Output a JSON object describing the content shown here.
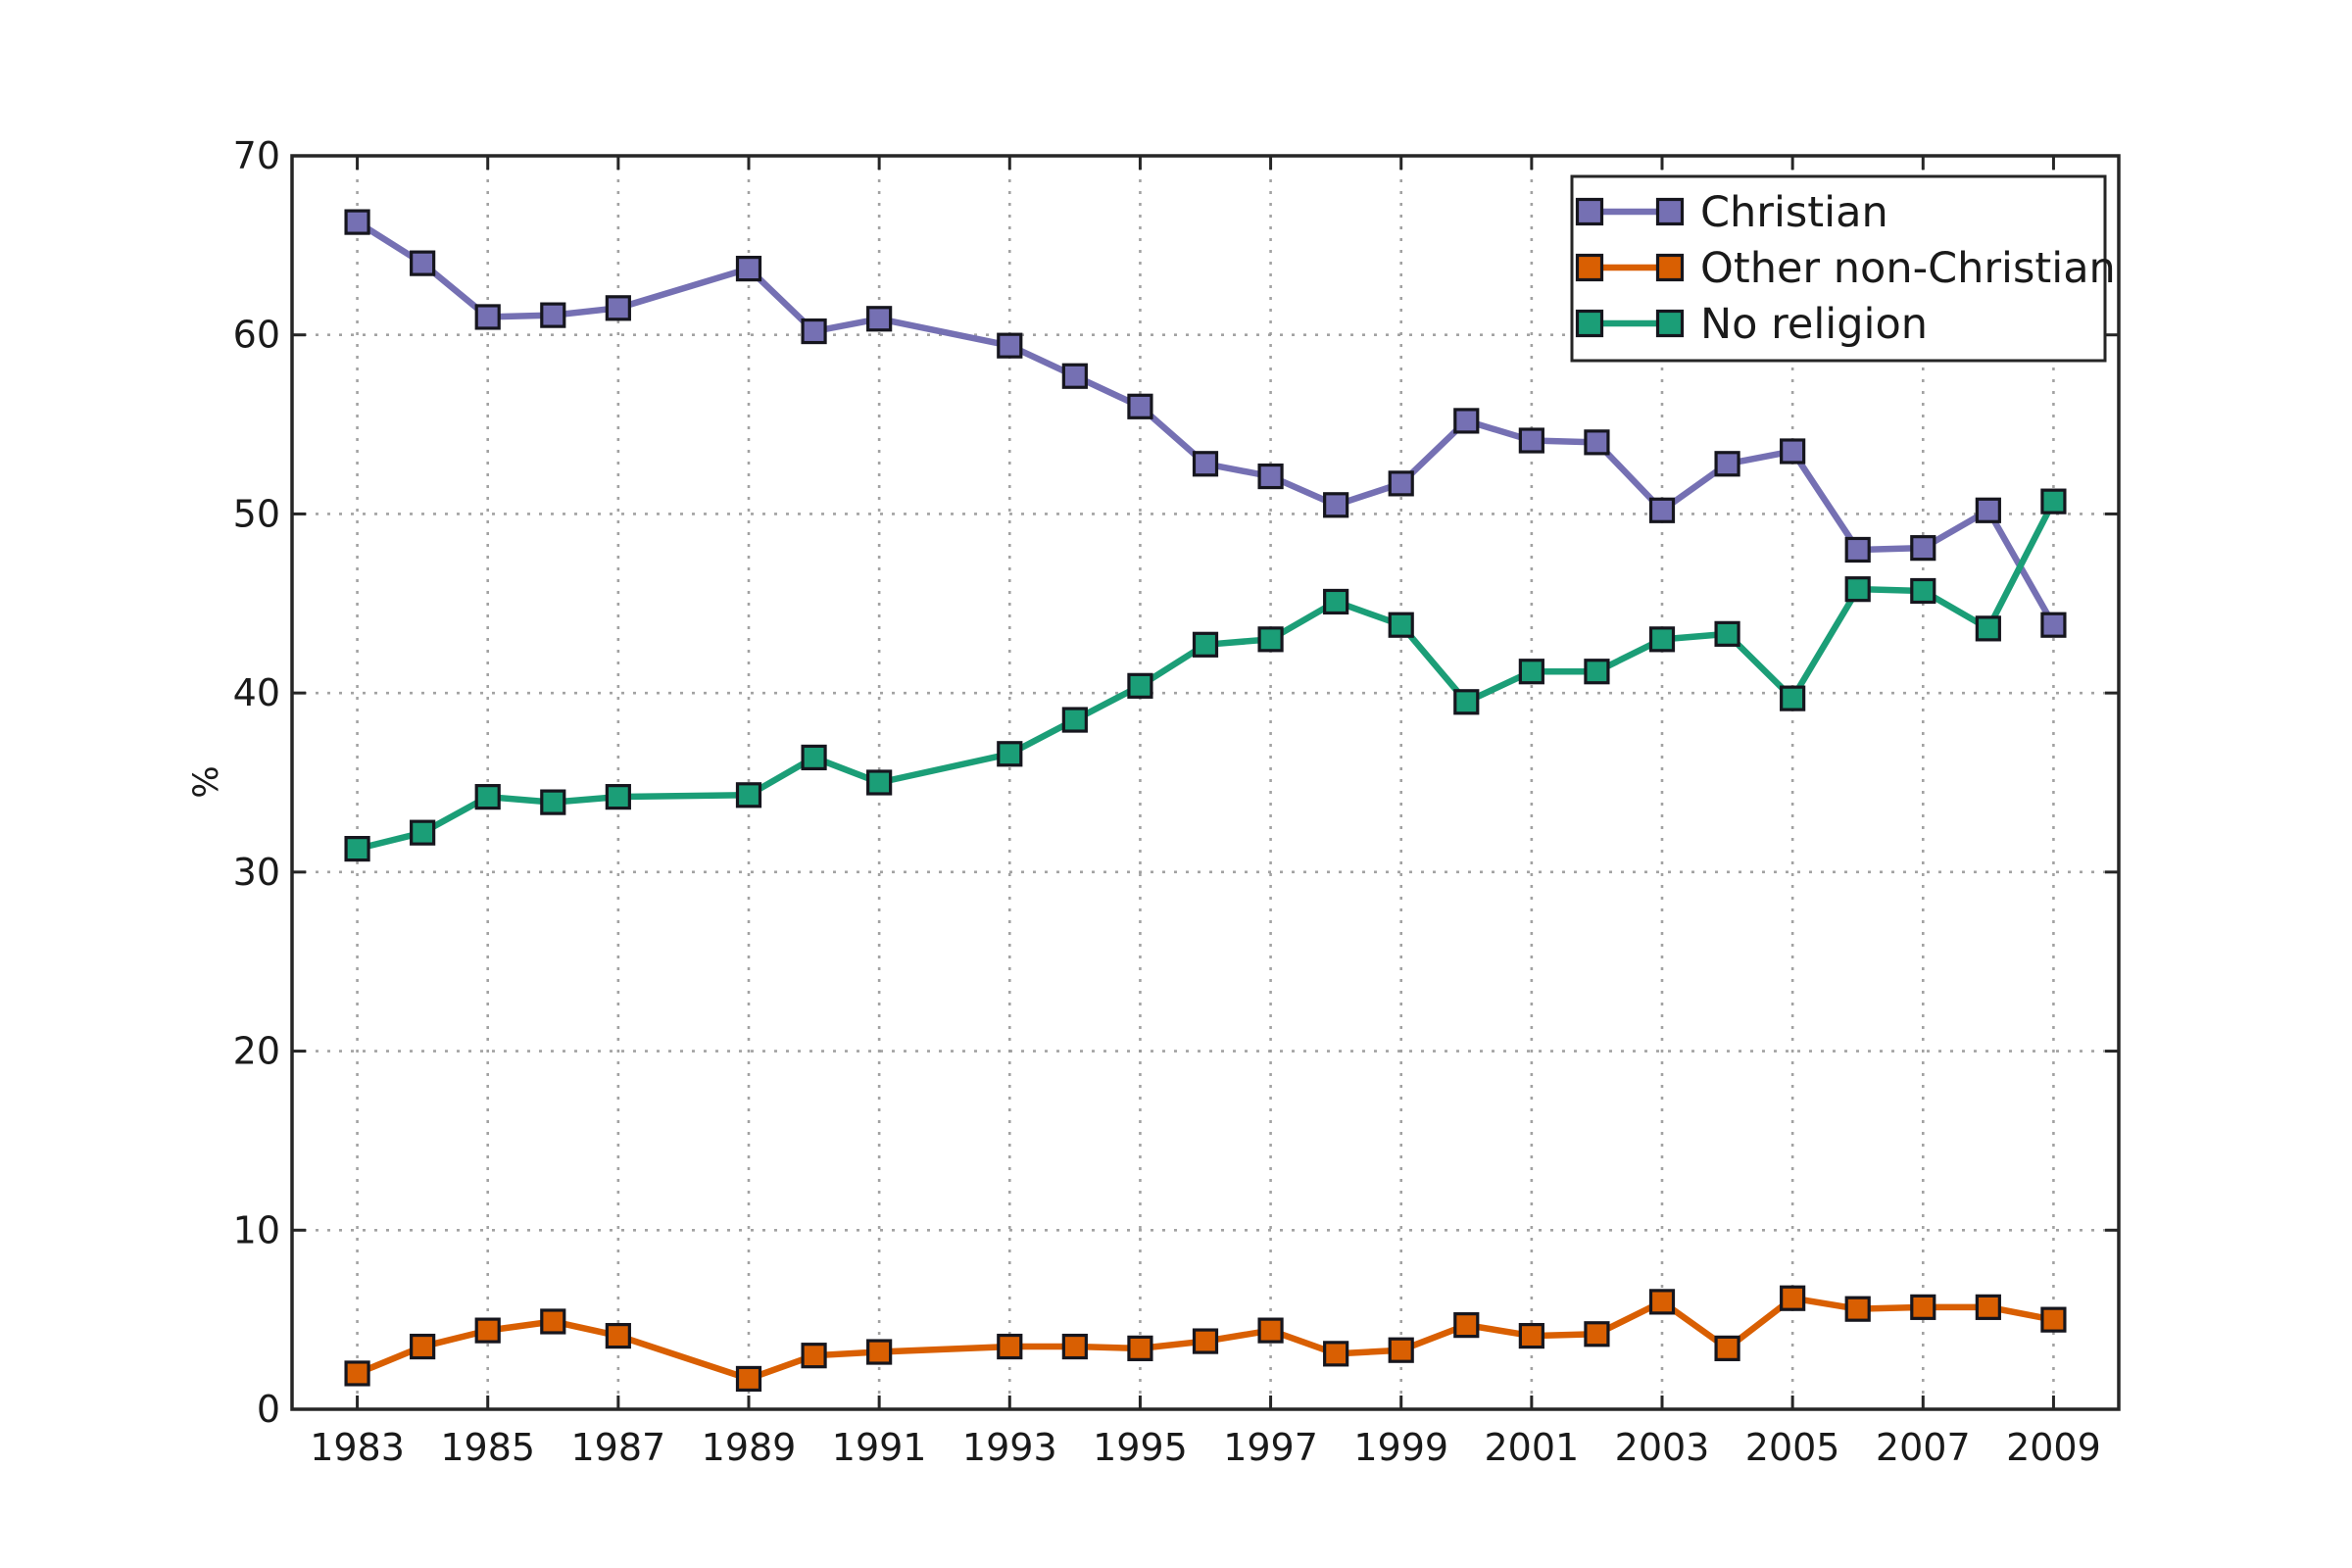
{
  "figure": {
    "background": "#ffffff",
    "axis_color": "#262626",
    "grid_color": "#999999",
    "tick_label_color": "#1a1a1a",
    "marker_edge_color": "#16161e"
  },
  "chart_data": {
    "type": "line",
    "title": "",
    "xlabel": "",
    "ylabel": "%",
    "xlim": [
      1982,
      2010
    ],
    "ylim": [
      0,
      70
    ],
    "xticks": [
      1983,
      1985,
      1987,
      1989,
      1991,
      1993,
      1995,
      1997,
      1999,
      2001,
      2003,
      2005,
      2007,
      2009
    ],
    "yticks": [
      0,
      10,
      20,
      30,
      40,
      50,
      60,
      70
    ],
    "grid": "dotted",
    "legend_position": "upper right",
    "marker": "square",
    "x": [
      1983,
      1984,
      1985,
      1986,
      1987,
      1989,
      1990,
      1991,
      1993,
      1994,
      1995,
      1996,
      1997,
      1998,
      1999,
      2000,
      2001,
      2002,
      2003,
      2004,
      2005,
      2006,
      2007,
      2008,
      2009
    ],
    "series": [
      {
        "name": "Christian",
        "color": "#7570b3",
        "values": [
          66.3,
          64.0,
          61.0,
          61.1,
          61.5,
          63.7,
          60.2,
          60.9,
          59.4,
          57.7,
          56.0,
          52.8,
          52.1,
          50.5,
          51.7,
          55.2,
          54.1,
          54.0,
          50.2,
          52.8,
          53.5,
          48.0,
          48.1,
          50.2,
          43.8
        ]
      },
      {
        "name": "Other non-Christian",
        "color": "#d95f02",
        "values": [
          2.0,
          3.5,
          4.4,
          4.9,
          4.1,
          1.7,
          3.0,
          3.2,
          3.5,
          3.5,
          3.4,
          3.8,
          4.4,
          3.1,
          3.3,
          4.7,
          4.1,
          4.2,
          6.0,
          3.4,
          6.2,
          5.6,
          5.7,
          5.7,
          5.0
        ]
      },
      {
        "name": "No religion",
        "color": "#1b9e77",
        "values": [
          31.3,
          32.2,
          34.2,
          33.9,
          34.2,
          34.3,
          36.4,
          35.0,
          36.6,
          38.5,
          40.4,
          42.7,
          43.0,
          45.1,
          43.8,
          39.5,
          41.2,
          41.2,
          43.0,
          43.3,
          39.7,
          45.8,
          45.7,
          43.6,
          50.7
        ]
      }
    ]
  },
  "legend": {
    "items": [
      "Christian",
      "Other non-Christian",
      "No religion"
    ]
  }
}
